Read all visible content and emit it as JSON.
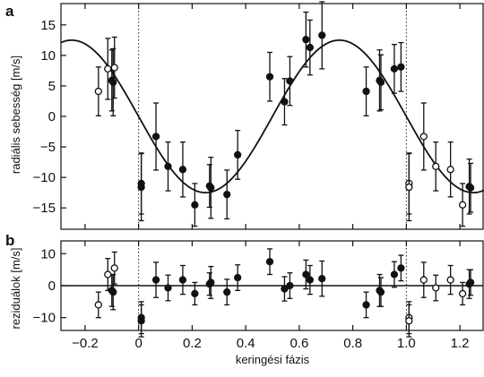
{
  "chart_data": [
    {
      "panel": "a",
      "type": "scatter",
      "ylabel": "radiális sebesség [m/s]",
      "xlabel": "",
      "xlim": [
        -0.29,
        1.29
      ],
      "ylim": [
        -18.5,
        18.5
      ],
      "xticks": [
        -0.2,
        0,
        0.2,
        0.4,
        0.6,
        0.8,
        1.0,
        1.2
      ],
      "xtick_labels": [
        "−0.2",
        "0",
        "0.2",
        "0.4",
        "0.6",
        "0.8",
        "1.0",
        "1.2"
      ],
      "yticks": [
        -15,
        -10,
        -5,
        0,
        5,
        10,
        15
      ],
      "ytick_labels": [
        "−15",
        "−10",
        "−5",
        "0",
        "5",
        "10",
        "15"
      ],
      "reference_lines_x": [
        0,
        1.0
      ],
      "model_curve": {
        "kind": "sine",
        "amplitude": 12.5,
        "phase_of_maximum": 0.75,
        "period": 1.0
      },
      "series": [
        {
          "marker": "filled",
          "points": [
            {
              "x": -0.1,
              "y": 5.9,
              "err": 5.0
            },
            {
              "x": -0.095,
              "y": 5.6,
              "err": 5.5
            },
            {
              "x": 0.01,
              "y": -11.0,
              "err": 5.0
            },
            {
              "x": 0.01,
              "y": -11.6,
              "err": 5.5
            },
            {
              "x": 0.065,
              "y": -3.3,
              "err": 5.5
            },
            {
              "x": 0.11,
              "y": -8.2,
              "err": 4.0
            },
            {
              "x": 0.165,
              "y": -8.7,
              "err": 4.5
            },
            {
              "x": 0.21,
              "y": -14.5,
              "err": 3.5
            },
            {
              "x": 0.27,
              "y": -11.7,
              "err": 5.0
            },
            {
              "x": 0.265,
              "y": -11.4,
              "err": 3.5
            },
            {
              "x": 0.33,
              "y": -12.8,
              "err": 4.0
            },
            {
              "x": 0.37,
              "y": -6.3,
              "err": 4.0
            },
            {
              "x": 0.49,
              "y": 6.5,
              "err": 4.0
            },
            {
              "x": 0.545,
              "y": 2.4,
              "err": 3.8
            },
            {
              "x": 0.565,
              "y": 5.8,
              "err": 4.0
            },
            {
              "x": 0.625,
              "y": 12.6,
              "err": 4.5
            },
            {
              "x": 0.64,
              "y": 11.3,
              "err": 4.5
            },
            {
              "x": 0.685,
              "y": 13.3,
              "err": 5.5
            },
            {
              "x": 0.85,
              "y": 4.1,
              "err": 4.0
            },
            {
              "x": 0.9,
              "y": 5.9,
              "err": 5.0
            },
            {
              "x": 0.905,
              "y": 5.6,
              "err": 4.5
            },
            {
              "x": 0.955,
              "y": 7.8,
              "err": 4.0
            },
            {
              "x": 0.98,
              "y": 8.1,
              "err": 4.0
            },
            {
              "x": 1.235,
              "y": -11.5,
              "err": 4.5
            },
            {
              "x": 1.24,
              "y": -11.7,
              "err": 4.0
            }
          ]
        },
        {
          "marker": "open",
          "points": [
            {
              "x": -0.15,
              "y": 4.1,
              "err": 4.0
            },
            {
              "x": -0.115,
              "y": 7.8,
              "err": 5.0
            },
            {
              "x": -0.09,
              "y": 8.0,
              "err": 5.0
            },
            {
              "x": 1.01,
              "y": -11.0,
              "err": 5.0
            },
            {
              "x": 1.01,
              "y": -11.6,
              "err": 5.5
            },
            {
              "x": 1.065,
              "y": -3.3,
              "err": 5.5
            },
            {
              "x": 1.11,
              "y": -8.2,
              "err": 4.0
            },
            {
              "x": 1.165,
              "y": -8.7,
              "err": 4.5
            },
            {
              "x": 1.21,
              "y": -14.5,
              "err": 3.5
            }
          ]
        }
      ]
    },
    {
      "panel": "b",
      "type": "scatter",
      "ylabel": "reziduálok [m/s]",
      "xlabel": "keringési fázis",
      "xlim": [
        -0.29,
        1.29
      ],
      "ylim": [
        -14,
        14
      ],
      "xticks": [
        -0.2,
        0,
        0.2,
        0.4,
        0.6,
        0.8,
        1.0,
        1.2
      ],
      "xtick_labels": [
        "−0.2",
        "0",
        "0.2",
        "0.4",
        "0.6",
        "0.8",
        "1.0",
        "1.2"
      ],
      "yticks": [
        -10,
        0,
        10
      ],
      "ytick_labels": [
        "−10",
        "0",
        "10"
      ],
      "reference_lines_x": [
        0,
        1.0
      ],
      "reference_lines_y": [
        0
      ],
      "series": [
        {
          "marker": "filled",
          "points": [
            {
              "x": -0.1,
              "y": -1.5,
              "err": 5.0
            },
            {
              "x": -0.095,
              "y": -2.0,
              "err": 5.5
            },
            {
              "x": 0.01,
              "y": -10.0,
              "err": 5.0
            },
            {
              "x": 0.01,
              "y": -11.0,
              "err": 5.0
            },
            {
              "x": 0.065,
              "y": 1.8,
              "err": 5.5
            },
            {
              "x": 0.11,
              "y": -0.7,
              "err": 4.0
            },
            {
              "x": 0.165,
              "y": 1.8,
              "err": 4.5
            },
            {
              "x": 0.21,
              "y": -2.5,
              "err": 3.5
            },
            {
              "x": 0.265,
              "y": 0.5,
              "err": 3.5
            },
            {
              "x": 0.27,
              "y": 1.0,
              "err": 5.0
            },
            {
              "x": 0.33,
              "y": -2.0,
              "err": 4.0
            },
            {
              "x": 0.37,
              "y": 2.5,
              "err": 4.0
            },
            {
              "x": 0.49,
              "y": 7.5,
              "err": 4.0
            },
            {
              "x": 0.545,
              "y": -1.0,
              "err": 3.8
            },
            {
              "x": 0.565,
              "y": 0.0,
              "err": 4.0
            },
            {
              "x": 0.625,
              "y": 3.5,
              "err": 4.5
            },
            {
              "x": 0.64,
              "y": 1.8,
              "err": 4.5
            },
            {
              "x": 0.685,
              "y": 2.2,
              "err": 5.5
            },
            {
              "x": 0.85,
              "y": -6.0,
              "err": 4.0
            },
            {
              "x": 0.9,
              "y": -1.5,
              "err": 5.0
            },
            {
              "x": 0.905,
              "y": -2.0,
              "err": 4.5
            },
            {
              "x": 0.955,
              "y": 3.5,
              "err": 4.0
            },
            {
              "x": 0.98,
              "y": 5.5,
              "err": 4.0
            },
            {
              "x": 1.235,
              "y": 0.5,
              "err": 4.5
            },
            {
              "x": 1.24,
              "y": 1.0,
              "err": 4.0
            }
          ]
        },
        {
          "marker": "open",
          "points": [
            {
              "x": -0.15,
              "y": -6.0,
              "err": 4.0
            },
            {
              "x": -0.115,
              "y": 3.5,
              "err": 5.0
            },
            {
              "x": -0.09,
              "y": 5.5,
              "err": 5.0
            },
            {
              "x": 1.01,
              "y": -10.0,
              "err": 5.0
            },
            {
              "x": 1.01,
              "y": -11.0,
              "err": 5.0
            },
            {
              "x": 1.065,
              "y": 1.8,
              "err": 5.5
            },
            {
              "x": 1.11,
              "y": -0.7,
              "err": 4.0
            },
            {
              "x": 1.165,
              "y": 1.8,
              "err": 4.5
            },
            {
              "x": 1.21,
              "y": -2.5,
              "err": 3.5
            }
          ]
        }
      ]
    }
  ]
}
